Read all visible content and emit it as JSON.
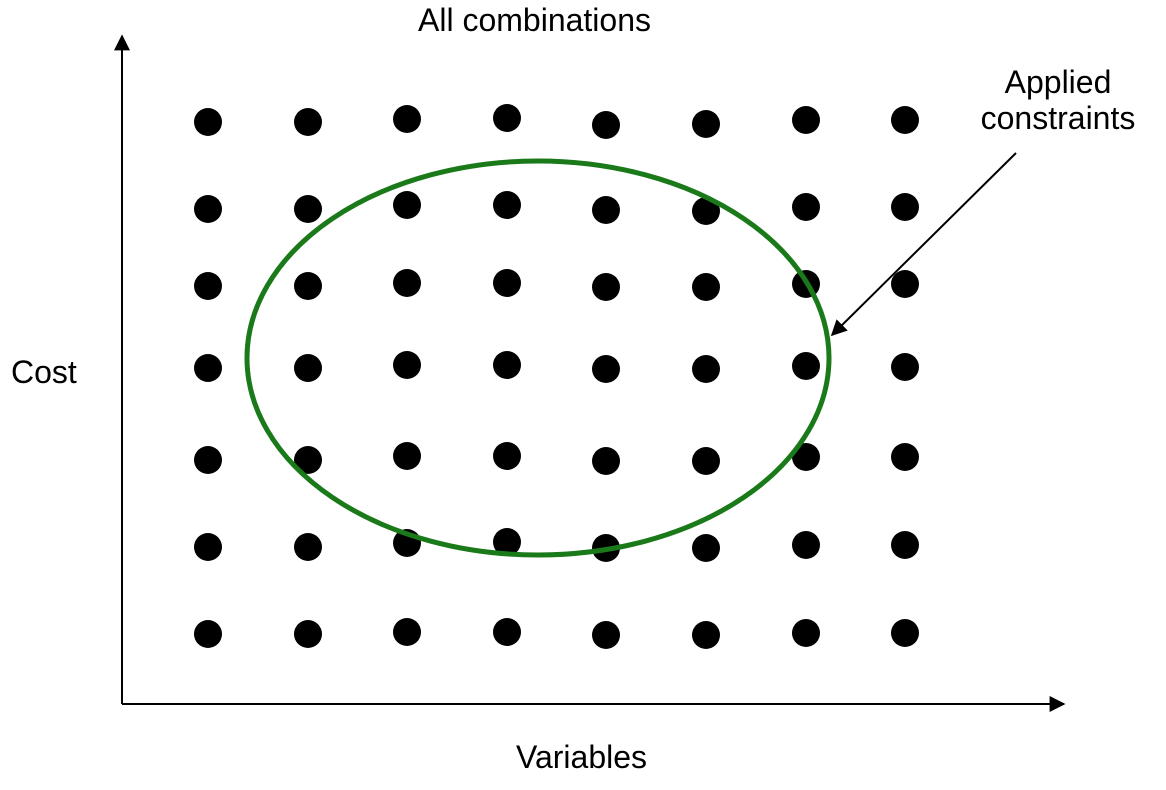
{
  "diagram": {
    "title": "All combinations",
    "y_axis_label": "Cost",
    "x_axis_label": "Variables",
    "annotation": {
      "line1": "Applied",
      "line2": "constraints"
    },
    "grid": {
      "rows": 7,
      "columns": 8,
      "point_count": 56
    },
    "colors": {
      "points": "#000000",
      "constraint_ellipse": "#1a7a1a",
      "axes": "#000000",
      "text": "#000000"
    }
  }
}
